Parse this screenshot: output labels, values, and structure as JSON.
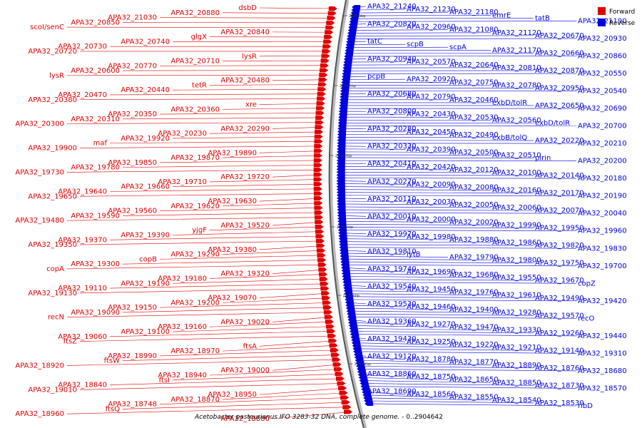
{
  "caption": {
    "organism": "Acetobacter pasteurianus IFO 3283-32 DNA, complete genome.",
    "range": " - 0..2904642"
  },
  "legend": [
    {
      "label": "Forward",
      "color": "#e00000"
    },
    {
      "label": "Reverse",
      "color": "#0000e0"
    }
  ],
  "scale_ticks": [
    "2300 kbp",
    "2250 kbp",
    "2200 kbp",
    "2150 kbp",
    "2100 kbp",
    "2050 kbp"
  ],
  "forward_labels": [
    "dsbD",
    "APA32_20880",
    "APA32_21030",
    "APA32_20850",
    "scoI/senC",
    "APA32_20840",
    "glgX",
    "APA32_20740",
    "APA32_20730",
    "APA32_20720",
    "lysR",
    "APA32_20710",
    "APA32_20770",
    "APA32_20600",
    "lysR",
    "APA32_20480",
    "tetR",
    "APA32_20440",
    "APA32_20470",
    "APA32_20380",
    "xre",
    "APA32_20360",
    "APA32_20350",
    "APA32_20310",
    "APA32_20300",
    "APA32_20290",
    "APA32_20230",
    "APA32_19920",
    "maf",
    "APA32_19900",
    "APA32_19890",
    "APA32_19870",
    "APA32_19850",
    "APA32_19780",
    "APA32_19730",
    "APA32_19720",
    "APA32_19710",
    "APA32_19660",
    "APA32_19640",
    "APA32_19650",
    "APA32_19630",
    "APA32_19620",
    "APA32_19560",
    "APA32_19590",
    "APA32_19480",
    "APA32_19520",
    "yjgF",
    "APA32_19390",
    "APA32_19370",
    "APA32_19350",
    "APA32_19380",
    "APA32_19290",
    "copB",
    "APA32_19300",
    "copA",
    "APA32_19320",
    "APA32_19180",
    "APA32_19190",
    "APA32_19110",
    "APA32_19130",
    "APA32_19070",
    "APA32_19200",
    "APA32_19150",
    "APA32_19090",
    "recN",
    "APA32_19020",
    "APA32_19160",
    "APA32_19100",
    "APA32_19060",
    "ftsZ",
    "ftsA",
    "APA32_18970",
    "APA32_18990",
    "ftsW",
    "APA32_18920",
    "APA32_19000",
    "APA32_18940",
    "ftsI",
    "APA32_18840",
    "APA32_19010",
    "APA32_18950",
    "APA32_18870",
    "APA32_18748",
    "ftsQ",
    "APA32_18960",
    "APA32_18880"
  ],
  "reverse_labels": [
    "APA32_21240",
    "APA32_21230",
    "APA32_21180",
    "emrE",
    "tatB",
    "APA32_21190",
    "APA32_20820",
    "APA32_20960",
    "APA32_21080",
    "APA32_21120",
    "APA32_20670",
    "APA32_20930",
    "tatC",
    "scpB",
    "scpA",
    "APA32_21170",
    "APA32_20660",
    "APA32_20860",
    "APA32_20940",
    "APA32_20570",
    "APA32_20640",
    "APA32_20810",
    "APA32_20870",
    "APA32_20550",
    "pcpB",
    "APA32_20920",
    "APA32_20750",
    "APA32_20780",
    "APA32_20950",
    "APA32_20540",
    "APA32_20680",
    "APA32_20790",
    "APA32_20460",
    "exbD/tolR",
    "APA32_20650",
    "APA32_20690",
    "APA32_20800",
    "APA32_20430",
    "APA32_20530",
    "APA32_20560",
    "exbD/tolR",
    "APA32_20700",
    "APA32_20280",
    "APA32_20450",
    "APA32_20490",
    "exbB/tolQ",
    "APA32_20220",
    "APA32_20210",
    "APA32_20330",
    "APA32_20390",
    "APA32_20500",
    "APA32_20510",
    "pirin",
    "APA32_20200",
    "APA32_20410",
    "APA32_20420",
    "APA32_20120",
    "APA32_20100",
    "APA32_20140",
    "APA32_20180",
    "APA32_20270",
    "APA32_20090",
    "APA32_20080",
    "APA32_20160",
    "APA32_20170",
    "APA32_20190",
    "APA32_20110",
    "APA32_20030",
    "APA32_20050",
    "APA32_20060",
    "APA32_20070",
    "APA32_20040",
    "APA32_20010",
    "APA32_20000",
    "APA32_20020",
    "APA32_19990",
    "APA32_19950",
    "APA32_19960",
    "APA32_19970",
    "APA32_19980",
    "APA32_19880",
    "APA32_19860",
    "APA32_19820",
    "APA32_19830",
    "APA32_19810",
    "lytB",
    "APA32_19790",
    "APA32_19800",
    "APA32_19750",
    "APA32_19700",
    "APA32_19740",
    "APA32_19690",
    "APA32_19680",
    "APA32_19550",
    "APA32_19670",
    "copZ",
    "APA32_19540",
    "APA32_19450",
    "APA32_19760",
    "APA32_19610",
    "APA32_19490",
    "APA32_19420",
    "APA32_19530",
    "APA32_19460",
    "APA32_19400",
    "APA32_19280",
    "APA32_19570",
    "recO",
    "APA32_19360",
    "APA32_19270",
    "APA32_19470",
    "APA32_19330",
    "APA32_19260",
    "APA32_19440",
    "APA32_19430",
    "APA32_19250",
    "APA32_19220",
    "APA32_19210",
    "APA32_19140",
    "APA32_19310",
    "APA32_19120",
    "APA32_18780",
    "APA32_18770",
    "APA32_18890",
    "APA32_18760",
    "APA32_18680",
    "APA32_18860",
    "APA32_18750",
    "APA32_18650",
    "APA32_18850",
    "APA32_18730",
    "APA32_18570",
    "APA32_18690",
    "APA32_18560",
    "APA32_18550",
    "APA32_18540",
    "APA32_18530",
    "ribD"
  ]
}
